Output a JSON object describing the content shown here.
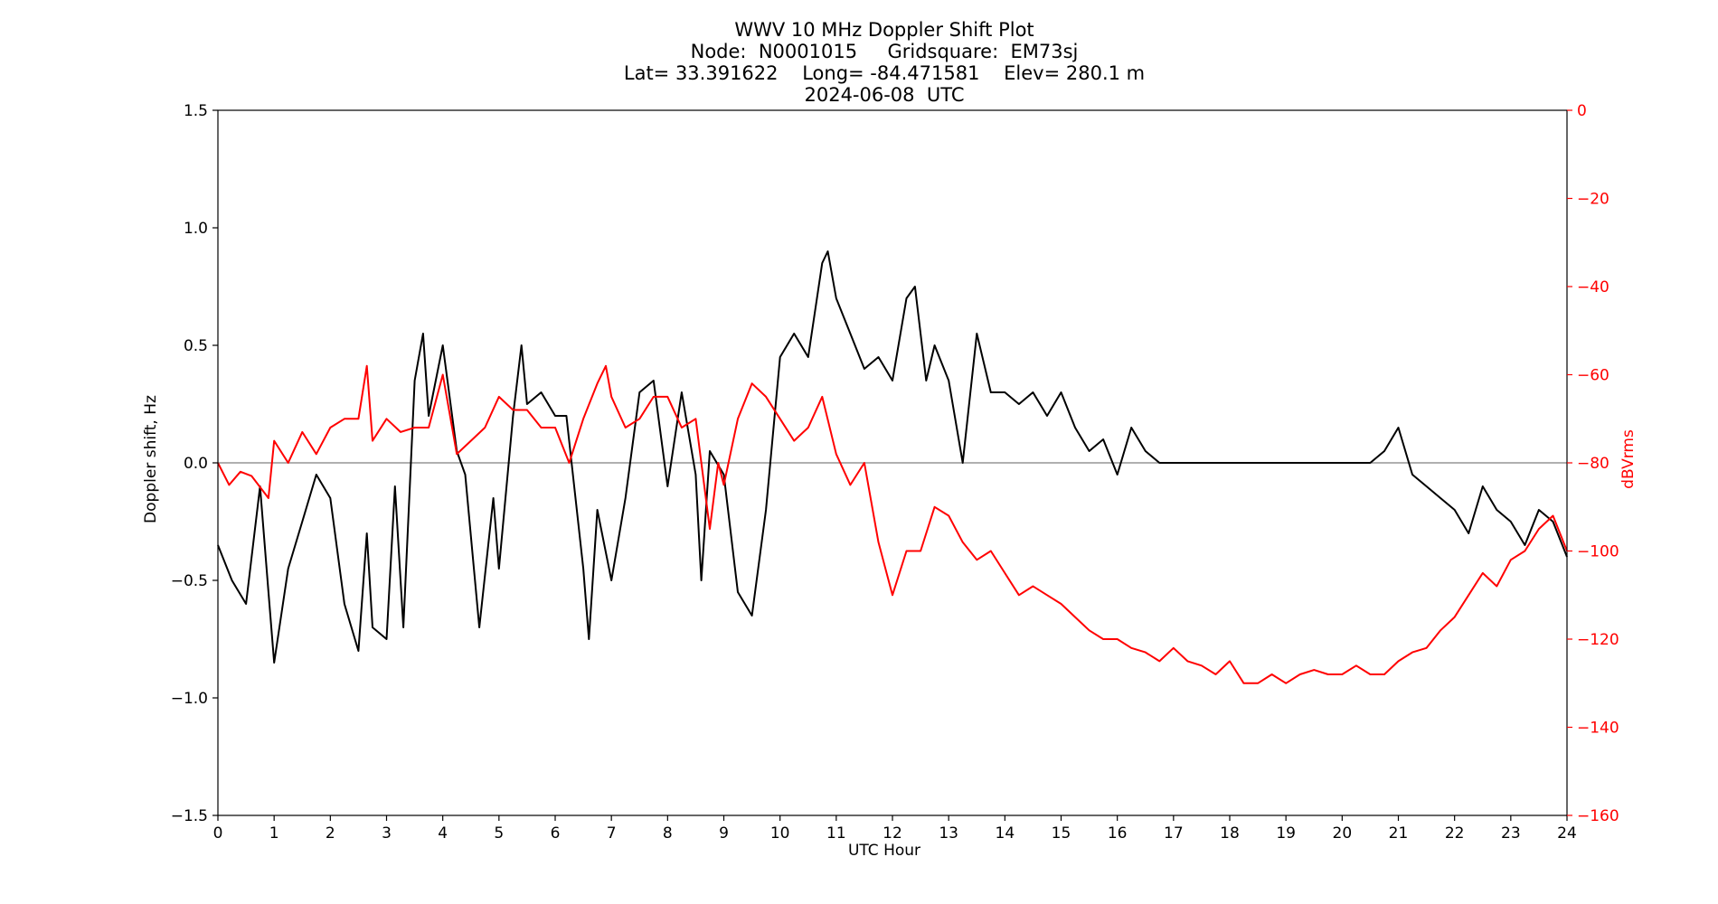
{
  "chart_data": {
    "type": "line",
    "title_lines": [
      "WWV 10 MHz Doppler Shift Plot",
      "Node:  N0001015     Gridsquare:  EM73sj",
      "Lat= 33.391622    Long= -84.471581    Elev= 280.1 m",
      "2024-06-08  UTC"
    ],
    "xlabel": "UTC Hour",
    "ylabel_left": "Doppler shift, Hz",
    "ylabel_right": "dBVrms",
    "xlim": [
      0,
      24
    ],
    "ylim_left": [
      -1.5,
      1.5
    ],
    "ylim_right": [
      -160,
      0
    ],
    "x_ticks": [
      "0",
      "1",
      "2",
      "3",
      "4",
      "5",
      "6",
      "7",
      "8",
      "9",
      "10",
      "11",
      "12",
      "13",
      "14",
      "15",
      "16",
      "17",
      "18",
      "19",
      "20",
      "21",
      "22",
      "23",
      "24"
    ],
    "y_left_ticks": [
      "1.5",
      "1.0",
      "0.5",
      "0.0",
      "−0.5",
      "−1.0",
      "−1.5"
    ],
    "y_right_ticks": [
      "0",
      "−20",
      "−40",
      "−60",
      "−80",
      "−100",
      "−120",
      "−140",
      "−160"
    ],
    "zero_line": 0,
    "grid": false,
    "colors": {
      "doppler": "#000000",
      "power": "#ff0000",
      "zero_line": "#808080"
    },
    "series": [
      {
        "axis": "left",
        "x": [
          0,
          0.25,
          0.5,
          0.75,
          0.9,
          1,
          1.25,
          1.5,
          1.75,
          2,
          2.25,
          2.5,
          2.65,
          2.75,
          3,
          3.15,
          3.3,
          3.5,
          3.65,
          3.75,
          4,
          4.25,
          4.4,
          4.65,
          4.9,
          5,
          5.25,
          5.4,
          5.5,
          5.75,
          6,
          6.2,
          6.5,
          6.6,
          6.75,
          7,
          7.25,
          7.5,
          7.75,
          8,
          8.25,
          8.5,
          8.6,
          8.75,
          9,
          9.25,
          9.5,
          9.75,
          10,
          10.25,
          10.5,
          10.75,
          10.85,
          11,
          11.25,
          11.5,
          11.75,
          12,
          12.25,
          12.4,
          12.6,
          12.75,
          13,
          13.25,
          13.5,
          13.75,
          14,
          14.25,
          14.5,
          14.75,
          15,
          15.25,
          15.5,
          15.75,
          16,
          16.25,
          16.5,
          16.75,
          17,
          17.5,
          18,
          18.5,
          19,
          19.5,
          20,
          20.5,
          20.75,
          21,
          21.25,
          21.5,
          21.75,
          22,
          22.25,
          22.5,
          22.75,
          23,
          23.25,
          23.5,
          23.75,
          24
        ],
        "y": [
          -0.35,
          -0.5,
          -0.6,
          -0.1,
          -0.55,
          -0.85,
          -0.45,
          -0.25,
          -0.05,
          -0.15,
          -0.6,
          -0.8,
          -0.3,
          -0.7,
          -0.75,
          -0.1,
          -0.7,
          0.35,
          0.55,
          0.2,
          0.5,
          0.05,
          -0.05,
          -0.7,
          -0.15,
          -0.45,
          0.2,
          0.5,
          0.25,
          0.3,
          0.2,
          0.2,
          -0.45,
          -0.75,
          -0.2,
          -0.5,
          -0.15,
          0.3,
          0.35,
          -0.1,
          0.3,
          -0.05,
          -0.5,
          0.05,
          -0.05,
          -0.55,
          -0.65,
          -0.2,
          0.45,
          0.55,
          0.45,
          0.85,
          0.9,
          0.7,
          0.55,
          0.4,
          0.45,
          0.35,
          0.7,
          0.75,
          0.35,
          0.5,
          0.35,
          0.0,
          0.55,
          0.3,
          0.3,
          0.25,
          0.3,
          0.2,
          0.3,
          0.15,
          0.05,
          0.1,
          -0.05,
          0.15,
          0.05,
          0.0,
          0.0,
          0.0,
          0.0,
          0.0,
          0.0,
          0.0,
          0.0,
          0.0,
          0.05,
          0.15,
          -0.05,
          -0.1,
          -0.15,
          -0.2,
          -0.3,
          -0.1,
          -0.2,
          -0.25,
          -0.35,
          -0.2,
          -0.25,
          -0.4
        ]
      },
      {
        "axis": "right",
        "x": [
          0,
          0.2,
          0.4,
          0.6,
          0.9,
          1,
          1.25,
          1.5,
          1.75,
          2,
          2.25,
          2.5,
          2.65,
          2.75,
          3,
          3.25,
          3.5,
          3.75,
          4,
          4.25,
          4.5,
          4.75,
          5,
          5.25,
          5.5,
          5.75,
          6,
          6.25,
          6.5,
          6.75,
          6.9,
          7,
          7.25,
          7.5,
          7.75,
          8,
          8.25,
          8.5,
          8.75,
          8.9,
          9,
          9.25,
          9.5,
          9.75,
          10,
          10.25,
          10.5,
          10.75,
          11,
          11.25,
          11.5,
          11.75,
          12,
          12.25,
          12.5,
          12.75,
          13,
          13.25,
          13.5,
          13.75,
          14,
          14.25,
          14.5,
          14.75,
          15,
          15.25,
          15.5,
          15.75,
          16,
          16.25,
          16.5,
          16.75,
          17,
          17.25,
          17.5,
          17.75,
          18,
          18.25,
          18.5,
          18.75,
          19,
          19.25,
          19.5,
          19.75,
          20,
          20.25,
          20.5,
          20.75,
          21,
          21.25,
          21.5,
          21.75,
          22,
          22.25,
          22.5,
          22.75,
          23,
          23.25,
          23.5,
          23.75,
          24
        ],
        "y": [
          -80,
          -85,
          -82,
          -83,
          -88,
          -75,
          -80,
          -73,
          -78,
          -72,
          -70,
          -70,
          -58,
          -75,
          -70,
          -73,
          -72,
          -72,
          -60,
          -78,
          -75,
          -72,
          -65,
          -68,
          -68,
          -72,
          -72,
          -80,
          -70,
          -62,
          -58,
          -65,
          -72,
          -70,
          -65,
          -65,
          -72,
          -70,
          -95,
          -80,
          -85,
          -70,
          -62,
          -65,
          -70,
          -75,
          -72,
          -65,
          -78,
          -85,
          -80,
          -98,
          -110,
          -100,
          -100,
          -90,
          -92,
          -98,
          -102,
          -100,
          -105,
          -110,
          -108,
          -110,
          -112,
          -115,
          -118,
          -120,
          -120,
          -122,
          -123,
          -125,
          -122,
          -125,
          -126,
          -128,
          -125,
          -130,
          -130,
          -128,
          -130,
          -128,
          -127,
          -128,
          -128,
          -126,
          -128,
          -128,
          -125,
          -123,
          -122,
          -118,
          -115,
          -110,
          -105,
          -108,
          -102,
          -100,
          -95,
          -92,
          -100
        ]
      }
    ]
  }
}
